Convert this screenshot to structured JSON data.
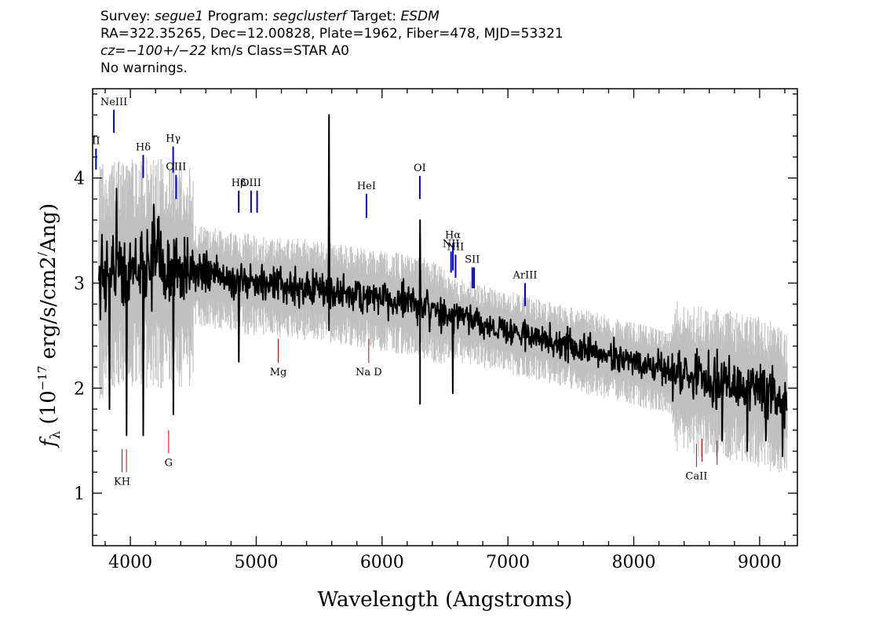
{
  "header": {
    "line1": {
      "survey_label": "Survey: ",
      "survey": "segue1",
      "program_label": " Program: ",
      "program": "segclusterf",
      "target_label": " Target: ",
      "target": "ESDM"
    },
    "line2": "RA=322.35265, Dec=12.00828, Plate=1962, Fiber=478, MJD=53321",
    "line3": {
      "cz": "cz=−100+/−22",
      "rest": " km/s Class=STAR A0"
    },
    "line4": "No warnings."
  },
  "colors": {
    "flux": "#000000",
    "error_band": "#c0c0c0",
    "emission_marker": "#0000cc",
    "absorption_marker": "#cc0000",
    "axes": "#000000"
  },
  "chart_data": {
    "type": "line",
    "xlabel": "Wavelength (Angstroms)",
    "ylabel": "fλ (10−17 erg/s/cm2/Ang)",
    "xlim": [
      3700,
      9300
    ],
    "ylim": [
      0.5,
      4.85
    ],
    "xticks": [
      4000,
      5000,
      6000,
      7000,
      8000,
      9000
    ],
    "yticks": [
      1,
      2,
      3,
      4
    ],
    "xtick_labels": [
      "4000",
      "5000",
      "6000",
      "7000",
      "8000",
      "9000"
    ],
    "ytick_labels": [
      "1",
      "2",
      "3",
      "4"
    ],
    "continuum": {
      "x": [
        3750,
        3900,
        4000,
        4200,
        4500,
        5000,
        5500,
        6000,
        6300,
        6500,
        7000,
        7500,
        8000,
        8500,
        8800,
        9000,
        9200
      ],
      "y": [
        3.05,
        3.15,
        3.15,
        3.15,
        3.1,
        3.0,
        2.95,
        2.85,
        2.8,
        2.7,
        2.55,
        2.4,
        2.25,
        2.1,
        2.05,
        2.0,
        1.9
      ]
    },
    "spikes": [
      {
        "x": 3835,
        "y": 1.8
      },
      {
        "x": 3890,
        "y": 3.9
      },
      {
        "x": 3970,
        "y": 1.55
      },
      {
        "x": 4102,
        "y": 1.55
      },
      {
        "x": 4185,
        "y": 3.75
      },
      {
        "x": 4340,
        "y": 1.75
      },
      {
        "x": 4861,
        "y": 2.25
      },
      {
        "x": 5577,
        "y": 4.6
      },
      {
        "x": 5577,
        "y": 2.55
      },
      {
        "x": 6300,
        "y": 3.6
      },
      {
        "x": 6300,
        "y": 1.85
      },
      {
        "x": 6563,
        "y": 1.95
      },
      {
        "x": 8700,
        "y": 1.5
      },
      {
        "x": 8900,
        "y": 1.4
      },
      {
        "x": 9050,
        "y": 1.5
      },
      {
        "x": 9180,
        "y": 1.35
      }
    ],
    "emission_lines": [
      {
        "label": "II",
        "x": 3727,
        "y1": 4.08,
        "y2": 4.28
      },
      {
        "label": "NeIII",
        "x": 3869,
        "y1": 4.43,
        "y2": 4.65
      },
      {
        "label": "Hδ",
        "x": 4102,
        "y1": 4.0,
        "y2": 4.22
      },
      {
        "label": "Hγ",
        "x": 4340,
        "y1": 4.05,
        "y2": 4.3
      },
      {
        "label": "OIII",
        "x": 4363,
        "y1": 3.8,
        "y2": 4.03
      },
      {
        "label": "Hβ",
        "x": 4861,
        "y1": 3.67,
        "y2": 3.88
      },
      {
        "label": "OIII",
        "x": 4959,
        "y1": 3.67,
        "y2": 3.88
      },
      {
        "label": "",
        "x": 5007,
        "y1": 3.67,
        "y2": 3.88
      },
      {
        "label": "HeI",
        "x": 5876,
        "y1": 3.62,
        "y2": 3.85
      },
      {
        "label": "OI",
        "x": 6300,
        "y1": 3.8,
        "y2": 4.02
      },
      {
        "label": "NII",
        "x": 6548,
        "y1": 3.1,
        "y2": 3.3
      },
      {
        "label": "Hα",
        "x": 6563,
        "y1": 3.12,
        "y2": 3.38
      },
      {
        "label": "NII",
        "x": 6584,
        "y1": 3.05,
        "y2": 3.27
      },
      {
        "label": "SII",
        "x": 6717,
        "y1": 2.95,
        "y2": 3.15
      },
      {
        "label": "",
        "x": 6731,
        "y1": 2.95,
        "y2": 3.15
      },
      {
        "label": "ArIII",
        "x": 7136,
        "y1": 2.78,
        "y2": 3.0
      }
    ],
    "absorption_lines": [
      {
        "label": "KH",
        "x": 3934,
        "y1": 1.2,
        "y2": 1.42
      },
      {
        "label": "",
        "x": 3969,
        "y1": 1.2,
        "y2": 1.42
      },
      {
        "label": "G",
        "x": 4304,
        "y1": 1.38,
        "y2": 1.6
      },
      {
        "label": "Mg",
        "x": 5175,
        "y1": 2.24,
        "y2": 2.47
      },
      {
        "label": "Na D",
        "x": 5894,
        "y1": 2.24,
        "y2": 2.47
      },
      {
        "label": "CaII",
        "x": 8498,
        "y1": 1.25,
        "y2": 1.47
      },
      {
        "label": "",
        "x": 8542,
        "y1": 1.3,
        "y2": 1.52
      },
      {
        "label": "",
        "x": 8662,
        "y1": 1.27,
        "y2": 1.5
      }
    ]
  }
}
